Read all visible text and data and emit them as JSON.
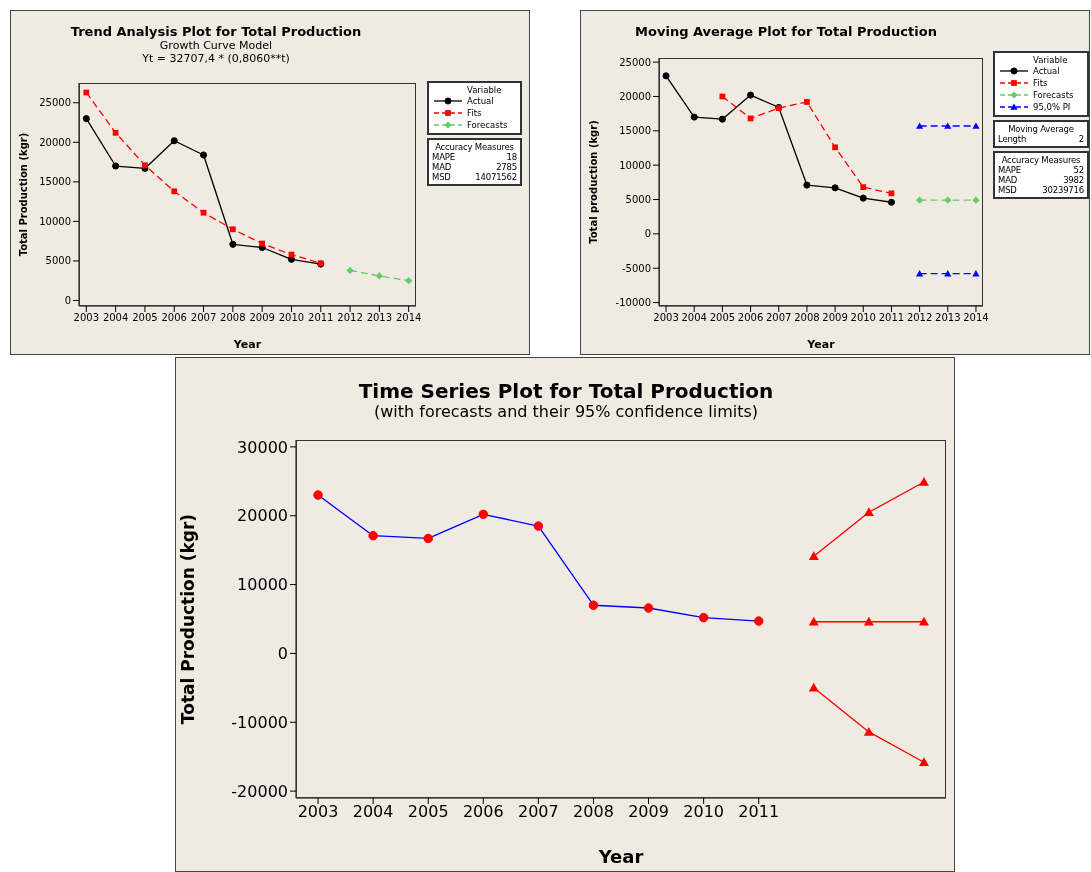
{
  "chart_data": [
    {
      "type": "line",
      "title": "Trend Analysis Plot for Total Production",
      "subtitle": "Growth Curve Model\nYt = 32707,4 * (0,8060**t)",
      "xlabel": "Year",
      "ylabel": "Total Production (kgr)",
      "legend": "right",
      "legend_title": "Variable",
      "categories": [
        "2003",
        "2004",
        "2005",
        "2006",
        "2007",
        "2008",
        "2009",
        "2010",
        "2011",
        "2012",
        "2013",
        "2014"
      ],
      "ylim": [
        -700,
        27500
      ],
      "yticks": [
        0,
        5000,
        10000,
        15000,
        20000,
        25000
      ],
      "grid": false,
      "series": [
        {
          "name": "Actual",
          "color": "#000000",
          "marker": "circle",
          "line_style": "solid",
          "values": [
            23000,
            17000,
            16700,
            20200,
            18400,
            7100,
            6700,
            5200,
            4600,
            null,
            null,
            null
          ]
        },
        {
          "name": "Fits",
          "color": "#ff0000",
          "marker": "square",
          "line_style": "dashed",
          "values": [
            26300,
            21200,
            17100,
            13800,
            11100,
            9000,
            7200,
            5800,
            4700,
            null,
            null,
            null
          ]
        },
        {
          "name": "Forecasts",
          "color": "#66cc66",
          "marker": "diamond",
          "line_style": "dashed",
          "values": [
            null,
            null,
            null,
            null,
            null,
            null,
            null,
            null,
            null,
            3800,
            3100,
            2500
          ]
        }
      ],
      "annotations": [
        "Accuracy Measures",
        "MAPE 18",
        "MAD 2785",
        "MSD 14071562"
      ]
    },
    {
      "type": "line",
      "title": "Moving Average Plot for Total Production",
      "xlabel": "Year",
      "ylabel": "Total production (kgr)",
      "legend": "right",
      "legend_title": "Variable",
      "categories": [
        "2003",
        "2004",
        "2005",
        "2006",
        "2007",
        "2008",
        "2009",
        "2010",
        "2011",
        "2012",
        "2013",
        "2014"
      ],
      "ylim": [
        -10500,
        25600
      ],
      "yticks": [
        -10000,
        -5000,
        0,
        5000,
        10000,
        15000,
        20000,
        25000
      ],
      "grid": false,
      "series": [
        {
          "name": "Actual",
          "color": "#000000",
          "marker": "circle",
          "line_style": "solid",
          "values": [
            23000,
            17000,
            16700,
            20200,
            18400,
            7100,
            6700,
            5200,
            4600,
            null,
            null,
            null
          ]
        },
        {
          "name": "Fits",
          "color": "#ff0000",
          "marker": "square",
          "line_style": "dashed",
          "values": [
            null,
            null,
            20000,
            16800,
            18300,
            19200,
            12600,
            6800,
            5900,
            null,
            null,
            null
          ]
        },
        {
          "name": "Forecasts",
          "color": "#66cc66",
          "marker": "diamond",
          "line_style": "dashed",
          "values": [
            null,
            null,
            null,
            null,
            null,
            null,
            null,
            null,
            null,
            4900,
            4900,
            4900
          ]
        },
        {
          "name": "95,0% PI",
          "color": "#0000ff",
          "marker": "triangle",
          "line_style": "dashed",
          "values": [
            null,
            null,
            null,
            null,
            null,
            null,
            null,
            null,
            null,
            15700,
            15700,
            15700
          ]
        },
        {
          "color": "#0000ff",
          "marker": "triangle",
          "line_style": "dashed",
          "values": [
            null,
            null,
            null,
            null,
            null,
            null,
            null,
            null,
            null,
            -5800,
            -5800,
            -5800
          ]
        }
      ],
      "annotations": [
        "Moving Average",
        "Length 2",
        "Accuracy Measures",
        "MAPE 52",
        "MAD 3982",
        "MSD 30239716"
      ]
    },
    {
      "type": "line",
      "title": "Time Series Plot for Total Production",
      "subtitle": "(with forecasts and their 95% confidence limits)",
      "xlabel": "Year",
      "ylabel": "Total Production (kgr)",
      "legend": false,
      "categories": [
        "2003",
        "2004",
        "2005",
        "2006",
        "2007",
        "2008",
        "2009",
        "2010",
        "2011",
        null,
        null,
        null
      ],
      "ylim": [
        -21000,
        31000
      ],
      "yticks": [
        -20000,
        -10000,
        0,
        10000,
        20000,
        30000
      ],
      "grid": false,
      "series": [
        {
          "color": "#0000ff",
          "colors": [
            "#ff0000",
            "#ff0000",
            "#ff0000",
            "#ff0000",
            "#ff0000",
            "#ff0000",
            "#ff0000",
            "#ff0000",
            "#ff0000",
            null,
            null,
            null
          ],
          "marker": "circle",
          "line_style": "solid",
          "values": [
            23000,
            17100,
            16700,
            20200,
            18500,
            7000,
            6600,
            5200,
            4700,
            null,
            null,
            null
          ]
        },
        {
          "color": "#ff0000",
          "marker": "triangle",
          "line_style": "solid",
          "values": [
            null,
            null,
            null,
            null,
            null,
            null,
            null,
            null,
            null,
            14100,
            20500,
            24900
          ]
        },
        {
          "color": "#ff0000",
          "marker": "triangle",
          "line_style": "solid",
          "values": [
            null,
            null,
            null,
            null,
            null,
            null,
            null,
            null,
            null,
            4600,
            4600,
            4600
          ]
        },
        {
          "color": "#ff0000",
          "marker": "triangle",
          "line_style": "solid",
          "values": [
            null,
            null,
            null,
            null,
            null,
            null,
            null,
            null,
            null,
            -5000,
            -11400,
            -15800
          ]
        }
      ]
    }
  ]
}
